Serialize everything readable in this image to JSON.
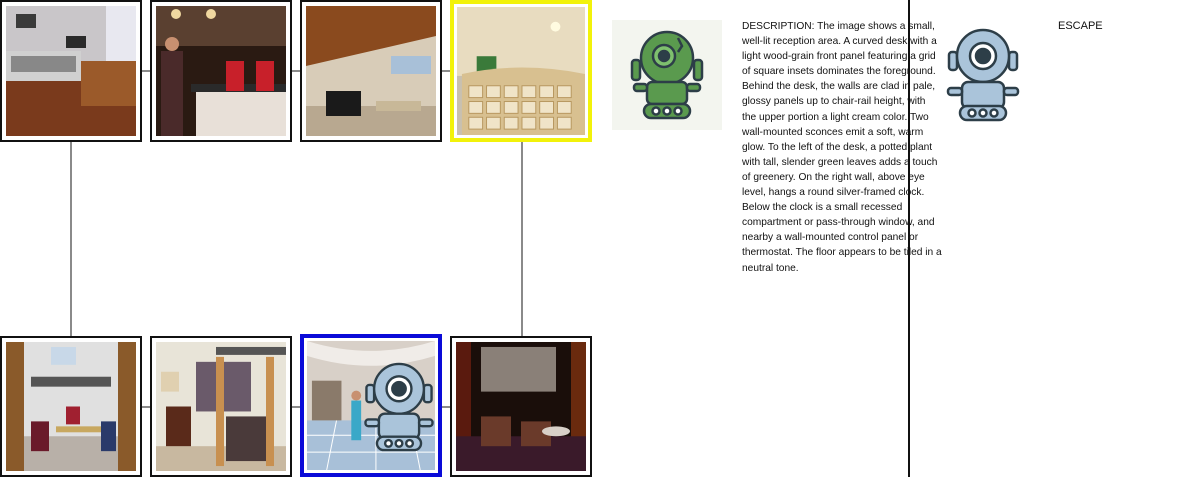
{
  "description": "DESCRIPTION: The image shows a small, well-lit reception area. A curved desk with a light wood‑grain front panel featuring a grid of square insets dominates the foreground. Behind the desk, the walls are clad in pale, glossy panels up to chair-rail height, with the upper portion a light cream color. Two wall-mounted sconces emit a soft, warm glow. To the left of the desk, a potted plant with tall, slender green leaves adds a touch of greenery. On the right wall, above eye level, hangs a round silver-framed clock. Below the clock is a small recessed compartment or pass-through window, and nearby a wall-mounted control panel or thermostat. The floor appears to be tiled in a neutral tone.",
  "escape_label": "ESCAPE",
  "rooms_top": [
    "recording-studio",
    "reception-handshake",
    "attic-lounge",
    "reception-desk"
  ],
  "rooms_bottom": [
    "home-office",
    "closet",
    "tiled-lobby",
    "home-theater"
  ],
  "current_room": "reception-desk",
  "selected_room": "tiled-lobby",
  "colors": {
    "current_border": "#f2f20a",
    "selected_border": "#0a0ad8",
    "npc_robot": "#5a9a4e",
    "player_robot": "#aac4da",
    "outline": "#2d3e48"
  }
}
